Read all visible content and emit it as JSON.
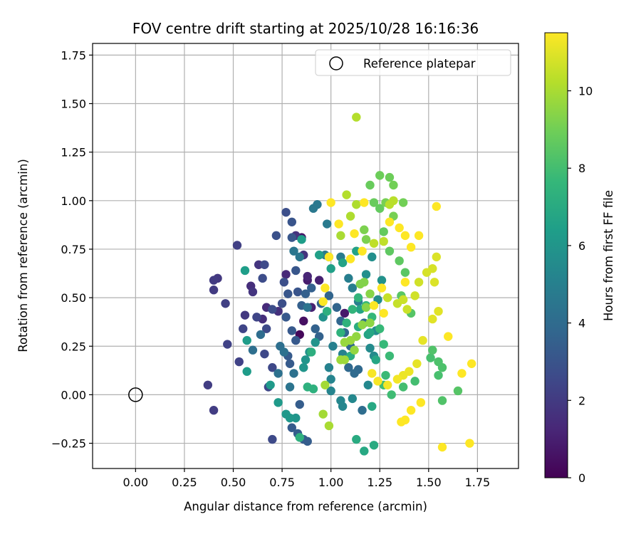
{
  "chart_data": {
    "type": "scatter",
    "title": "FOV centre drift starting at 2025/10/28 16:16:36",
    "xlabel": "Angular distance from reference (arcmin)",
    "ylabel": "Rotation from reference (arcmin)",
    "xlim": [
      -0.22,
      1.96
    ],
    "ylim": [
      -0.38,
      1.81
    ],
    "xticks": [
      0.0,
      0.25,
      0.5,
      0.75,
      1.0,
      1.25,
      1.5,
      1.75
    ],
    "xtick_labels": [
      "0.00",
      "0.25",
      "0.50",
      "0.75",
      "1.00",
      "1.25",
      "1.50",
      "1.75"
    ],
    "yticks": [
      -0.25,
      0.0,
      0.25,
      0.5,
      0.75,
      1.0,
      1.25,
      1.5,
      1.75
    ],
    "ytick_labels": [
      "−0.25",
      "0.00",
      "0.25",
      "0.50",
      "0.75",
      "1.00",
      "1.25",
      "1.50",
      "1.75"
    ],
    "grid": true,
    "legend": {
      "placement": "top-right",
      "entries": [
        "Reference platepar"
      ]
    },
    "reference_point": {
      "x": 0.0,
      "y": 0.0,
      "label": "Reference platepar"
    },
    "colorbar": {
      "label": "Hours from first FF file",
      "range": [
        0,
        11.5
      ],
      "ticks": [
        0,
        2,
        4,
        6,
        8,
        10
      ],
      "tick_labels": [
        "0",
        "2",
        "4",
        "6",
        "8",
        "10"
      ],
      "colormap": [
        "#440154",
        "#482878",
        "#3e4989",
        "#31688e",
        "#26828e",
        "#1f9e89",
        "#35b779",
        "#6ece58",
        "#b5de2b",
        "#fde725"
      ]
    },
    "points": [
      [
        0.84,
        0.31,
        0.2
      ],
      [
        0.86,
        0.38,
        0.5
      ],
      [
        0.85,
        0.81,
        0.7
      ],
      [
        0.88,
        0.59,
        0.9
      ],
      [
        0.94,
        0.59,
        1.0
      ],
      [
        0.9,
        0.45,
        1.1
      ],
      [
        0.88,
        0.61,
        1.2
      ],
      [
        1.07,
        0.42,
        0.8
      ],
      [
        0.77,
        0.62,
        1.3
      ],
      [
        0.67,
        0.45,
        1.4
      ],
      [
        0.59,
        0.56,
        1.5
      ],
      [
        0.65,
        0.39,
        1.5
      ],
      [
        0.73,
        0.43,
        1.6
      ],
      [
        0.86,
        0.72,
        1.7
      ],
      [
        0.82,
        0.82,
        1.7
      ],
      [
        0.63,
        0.67,
        1.8
      ],
      [
        0.6,
        0.53,
        1.8
      ],
      [
        0.56,
        0.41,
        1.9
      ],
      [
        0.42,
        0.6,
        1.9
      ],
      [
        0.4,
        0.59,
        2.0
      ],
      [
        0.4,
        0.54,
        2.0
      ],
      [
        0.37,
        0.05,
        2.1
      ],
      [
        0.4,
        -0.08,
        2.1
      ],
      [
        0.46,
        0.47,
        2.2
      ],
      [
        0.52,
        0.77,
        2.2
      ],
      [
        0.47,
        0.26,
        2.3
      ],
      [
        0.53,
        0.17,
        2.3
      ],
      [
        0.55,
        0.34,
        2.4
      ],
      [
        0.62,
        0.4,
        2.4
      ],
      [
        0.66,
        0.21,
        2.5
      ],
      [
        0.68,
        0.04,
        2.5
      ],
      [
        0.7,
        0.14,
        2.5
      ],
      [
        0.7,
        -0.23,
        2.6
      ],
      [
        0.67,
        0.34,
        2.6
      ],
      [
        0.66,
        0.67,
        2.6
      ],
      [
        0.65,
        0.6,
        2.7
      ],
      [
        0.7,
        0.44,
        2.7
      ],
      [
        0.75,
        0.47,
        2.8
      ],
      [
        0.76,
        0.58,
        2.8
      ],
      [
        0.77,
        0.94,
        2.8
      ],
      [
        0.72,
        0.82,
        2.9
      ],
      [
        0.8,
        0.89,
        3.0
      ],
      [
        0.83,
        0.53,
        3.0
      ],
      [
        0.82,
        0.64,
        3.1
      ],
      [
        0.8,
        0.81,
        3.1
      ],
      [
        0.78,
        0.52,
        3.1
      ],
      [
        0.77,
        0.4,
        3.2
      ],
      [
        0.8,
        0.33,
        3.2
      ],
      [
        0.82,
        0.28,
        3.2
      ],
      [
        0.78,
        0.2,
        3.3
      ],
      [
        0.79,
        0.16,
        3.3
      ],
      [
        0.8,
        -0.17,
        3.3
      ],
      [
        0.83,
        -0.2,
        3.4
      ],
      [
        0.84,
        -0.05,
        3.4
      ],
      [
        0.86,
        -0.23,
        3.4
      ],
      [
        0.88,
        -0.24,
        3.4
      ],
      [
        0.85,
        0.46,
        3.5
      ],
      [
        0.87,
        0.52,
        3.5
      ],
      [
        0.9,
        0.55,
        3.5
      ],
      [
        0.92,
        0.34,
        3.6
      ],
      [
        0.94,
        0.3,
        3.6
      ],
      [
        0.95,
        0.47,
        3.6
      ],
      [
        0.99,
        0.51,
        3.7
      ],
      [
        1.03,
        0.45,
        3.7
      ],
      [
        1.05,
        0.38,
        3.8
      ],
      [
        1.07,
        0.32,
        3.8
      ],
      [
        1.1,
        0.25,
        3.8
      ],
      [
        1.09,
        0.14,
        3.9
      ],
      [
        1.14,
        0.13,
        3.9
      ],
      [
        1.17,
        0.37,
        4.0
      ],
      [
        1.12,
        0.11,
        4.0
      ],
      [
        1.16,
        -0.08,
        4.1
      ],
      [
        0.64,
        0.31,
        4.1
      ],
      [
        0.6,
        0.23,
        4.2
      ],
      [
        0.74,
        0.25,
        4.2
      ],
      [
        0.76,
        0.22,
        4.3
      ],
      [
        0.73,
        0.11,
        4.3
      ],
      [
        0.81,
        0.11,
        4.3
      ],
      [
        0.79,
        0.04,
        4.4
      ],
      [
        0.88,
        0.45,
        4.4
      ],
      [
        0.84,
        0.71,
        4.5
      ],
      [
        0.81,
        0.74,
        4.5
      ],
      [
        0.91,
        0.96,
        4.6
      ],
      [
        0.93,
        0.98,
        4.6
      ],
      [
        0.98,
        0.88,
        4.7
      ],
      [
        0.97,
        0.72,
        4.7
      ],
      [
        0.99,
        0.71,
        4.8
      ],
      [
        1.05,
        0.71,
        4.8
      ],
      [
        1.09,
        0.6,
        4.9
      ],
      [
        1.11,
        0.55,
        4.9
      ],
      [
        1.14,
        0.48,
        5.0
      ],
      [
        1.01,
        0.25,
        5.0
      ],
      [
        1.06,
        0.21,
        5.1
      ],
      [
        0.99,
        0.14,
        5.1
      ],
      [
        1.0,
        0.08,
        5.2
      ],
      [
        1.0,
        0.02,
        5.2
      ],
      [
        1.05,
        -0.03,
        5.3
      ],
      [
        1.06,
        -0.06,
        5.3
      ],
      [
        1.11,
        -0.02,
        5.4
      ],
      [
        1.19,
        0.05,
        5.4
      ],
      [
        1.2,
        0.24,
        5.5
      ],
      [
        1.22,
        0.2,
        5.5
      ],
      [
        1.23,
        0.33,
        5.6
      ],
      [
        1.24,
        0.49,
        5.6
      ],
      [
        1.18,
        0.62,
        5.7
      ],
      [
        1.21,
        0.71,
        5.7
      ],
      [
        1.26,
        0.59,
        5.8
      ],
      [
        0.96,
        0.4,
        5.8
      ],
      [
        0.92,
        0.27,
        5.9
      ],
      [
        0.89,
        0.22,
        5.9
      ],
      [
        0.87,
        0.18,
        6.0
      ],
      [
        0.86,
        0.14,
        6.0
      ],
      [
        0.82,
        -0.12,
        6.0
      ],
      [
        0.79,
        -0.12,
        6.1
      ],
      [
        0.77,
        -0.1,
        6.1
      ],
      [
        0.73,
        -0.04,
        6.2
      ],
      [
        0.69,
        0.05,
        6.2
      ],
      [
        0.57,
        0.12,
        6.3
      ],
      [
        0.57,
        0.28,
        6.3
      ],
      [
        0.56,
        0.64,
        6.4
      ],
      [
        0.85,
        0.8,
        6.4
      ],
      [
        0.94,
        0.72,
        6.5
      ],
      [
        1.0,
        0.65,
        6.5
      ],
      [
        1.06,
        0.68,
        6.6
      ],
      [
        1.13,
        0.74,
        6.6
      ],
      [
        1.15,
        0.44,
        6.7
      ],
      [
        1.19,
        0.31,
        6.7
      ],
      [
        1.2,
        0.32,
        6.8
      ],
      [
        1.23,
        0.18,
        6.8
      ],
      [
        1.21,
        -0.06,
        6.9
      ],
      [
        1.17,
        -0.29,
        6.9
      ],
      [
        1.13,
        -0.23,
        7.0
      ],
      [
        1.22,
        -0.26,
        7.0
      ],
      [
        1.14,
        0.35,
        7.1
      ],
      [
        1.1,
        0.2,
        7.1
      ],
      [
        0.98,
        0.43,
        7.2
      ],
      [
        0.9,
        0.22,
        7.2
      ],
      [
        0.88,
        0.04,
        7.3
      ],
      [
        0.84,
        -0.22,
        7.3
      ],
      [
        0.91,
        0.03,
        7.3
      ],
      [
        1.05,
        0.32,
        7.4
      ],
      [
        1.08,
        0.37,
        7.4
      ],
      [
        1.11,
        0.44,
        7.5
      ],
      [
        1.14,
        0.5,
        7.5
      ],
      [
        1.18,
        0.46,
        7.6
      ],
      [
        1.21,
        0.4,
        7.6
      ],
      [
        1.25,
        0.34,
        7.7
      ],
      [
        1.27,
        0.26,
        7.7
      ],
      [
        1.3,
        0.2,
        7.8
      ],
      [
        1.28,
        0.1,
        7.8
      ],
      [
        1.27,
        0.05,
        7.9
      ],
      [
        1.31,
        0.0,
        7.9
      ],
      [
        1.37,
        0.04,
        8.0
      ],
      [
        1.43,
        0.07,
        8.0
      ],
      [
        1.51,
        0.19,
        8.1
      ],
      [
        1.55,
        0.1,
        8.1
      ],
      [
        1.57,
        0.14,
        8.2
      ],
      [
        1.55,
        0.17,
        8.2
      ],
      [
        1.52,
        0.23,
        8.3
      ],
      [
        1.57,
        -0.03,
        8.3
      ],
      [
        1.65,
        0.02,
        8.4
      ],
      [
        1.41,
        0.42,
        8.4
      ],
      [
        1.36,
        0.51,
        8.5
      ],
      [
        1.38,
        0.63,
        8.5
      ],
      [
        1.35,
        0.69,
        8.6
      ],
      [
        1.3,
        0.74,
        8.6
      ],
      [
        1.27,
        0.84,
        8.7
      ],
      [
        1.25,
        0.96,
        8.7
      ],
      [
        1.22,
        0.99,
        8.8
      ],
      [
        1.2,
        1.08,
        8.8
      ],
      [
        1.25,
        1.13,
        8.9
      ],
      [
        1.3,
        1.12,
        8.9
      ],
      [
        1.32,
        1.08,
        9.0
      ],
      [
        1.37,
        0.99,
        9.0
      ],
      [
        1.28,
        0.99,
        9.1
      ],
      [
        1.32,
        0.92,
        9.1
      ],
      [
        1.17,
        0.85,
        9.2
      ],
      [
        1.18,
        0.8,
        9.2
      ],
      [
        1.15,
        0.57,
        9.3
      ],
      [
        1.17,
        0.58,
        9.3
      ],
      [
        1.2,
        0.52,
        9.4
      ],
      [
        1.18,
        0.45,
        9.4
      ],
      [
        1.2,
        0.37,
        9.5
      ],
      [
        1.16,
        0.36,
        9.5
      ],
      [
        1.13,
        0.3,
        9.6
      ],
      [
        1.12,
        0.23,
        9.6
      ],
      [
        1.1,
        0.28,
        9.7
      ],
      [
        1.07,
        0.27,
        9.7
      ],
      [
        1.07,
        0.18,
        9.8
      ],
      [
        1.05,
        0.18,
        9.8
      ],
      [
        0.97,
        0.05,
        9.9
      ],
      [
        0.96,
        -0.1,
        9.9
      ],
      [
        0.99,
        -0.16,
        10.0
      ],
      [
        1.05,
        0.82,
        10.0
      ],
      [
        1.1,
        0.92,
        10.1
      ],
      [
        1.13,
        0.98,
        10.1
      ],
      [
        1.13,
        1.43,
        10.2
      ],
      [
        1.08,
        1.03,
        10.2
      ],
      [
        1.32,
        1.0,
        10.3
      ],
      [
        1.3,
        0.98,
        10.3
      ],
      [
        1.27,
        0.79,
        10.4
      ],
      [
        1.22,
        0.78,
        10.4
      ],
      [
        1.29,
        0.5,
        10.5
      ],
      [
        1.34,
        0.47,
        10.5
      ],
      [
        1.37,
        0.49,
        10.6
      ],
      [
        1.39,
        0.44,
        10.6
      ],
      [
        1.43,
        0.51,
        10.7
      ],
      [
        1.45,
        0.58,
        10.7
      ],
      [
        1.49,
        0.63,
        10.8
      ],
      [
        1.52,
        0.65,
        10.8
      ],
      [
        1.54,
        0.71,
        10.9
      ],
      [
        1.53,
        0.58,
        10.9
      ],
      [
        1.55,
        0.43,
        11.0
      ],
      [
        1.52,
        0.39,
        11.0
      ],
      [
        1.47,
        0.28,
        11.1
      ],
      [
        1.44,
        0.16,
        11.1
      ],
      [
        1.4,
        0.12,
        11.2
      ],
      [
        1.37,
        0.1,
        11.2
      ],
      [
        1.34,
        0.08,
        11.3
      ],
      [
        1.29,
        0.05,
        11.3
      ],
      [
        1.24,
        0.07,
        11.4
      ],
      [
        1.21,
        0.11,
        11.4
      ],
      [
        1.46,
        -0.04,
        11.5
      ],
      [
        1.41,
        -0.08,
        11.5
      ],
      [
        1.38,
        -0.13,
        11.5
      ],
      [
        1.36,
        -0.14,
        11.5
      ],
      [
        1.6,
        0.3,
        11.5
      ],
      [
        1.67,
        0.11,
        11.5
      ],
      [
        1.72,
        0.16,
        11.5
      ],
      [
        1.71,
        -0.25,
        11.5
      ],
      [
        1.57,
        -0.27,
        11.5
      ],
      [
        1.41,
        0.76,
        11.5
      ],
      [
        1.38,
        0.58,
        11.5
      ],
      [
        1.45,
        0.82,
        11.5
      ],
      [
        1.38,
        0.82,
        11.5
      ],
      [
        1.54,
        0.97,
        11.5
      ],
      [
        1.35,
        0.86,
        11.5
      ],
      [
        1.3,
        0.89,
        11.5
      ],
      [
        1.17,
        0.99,
        11.5
      ],
      [
        1.12,
        0.83,
        11.5
      ],
      [
        1.1,
        0.7,
        11.5
      ],
      [
        1.16,
        0.74,
        11.5
      ],
      [
        1.0,
        0.99,
        11.5
      ],
      [
        0.96,
        0.48,
        11.5
      ],
      [
        1.04,
        0.88,
        11.5
      ],
      [
        0.97,
        0.55,
        11.5
      ],
      [
        0.99,
        0.71,
        11.5
      ],
      [
        1.22,
        0.46,
        11.5
      ],
      [
        1.26,
        0.55,
        11.5
      ],
      [
        1.27,
        0.42,
        11.5
      ]
    ]
  }
}
